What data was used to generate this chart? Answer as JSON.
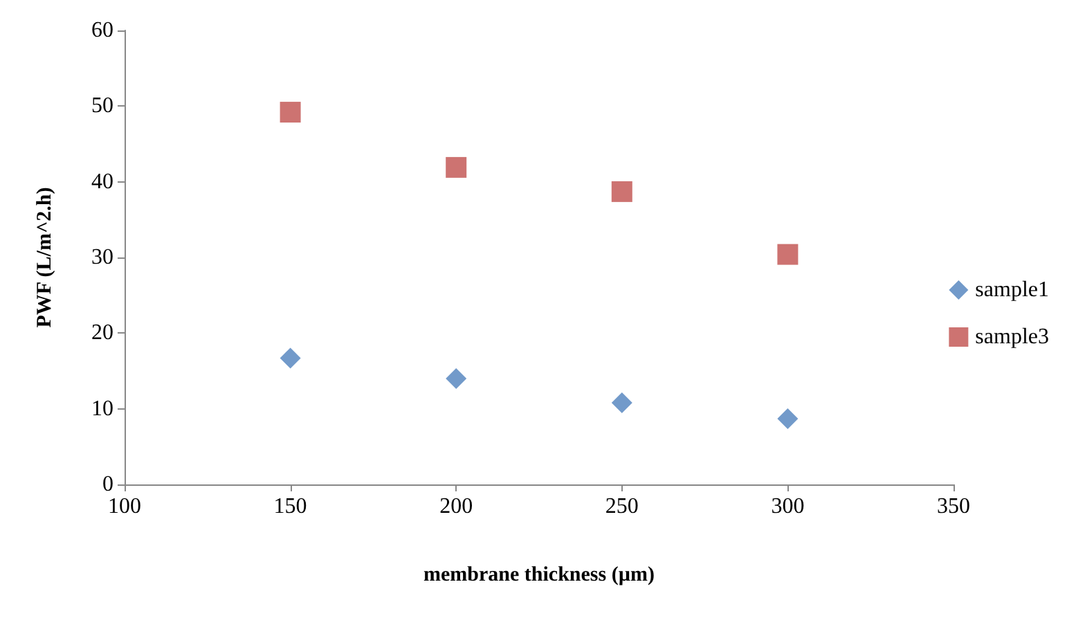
{
  "chart_data": {
    "type": "scatter",
    "xlabel": "membrane thickness (µm)",
    "ylabel": "PWF (L/m^2.h)",
    "x": [
      150,
      200,
      250,
      300
    ],
    "series": [
      {
        "name": "sample1",
        "color": "#4f81bd",
        "marker": "diamond",
        "values": [
          16.7,
          14.0,
          10.8,
          8.7
        ]
      },
      {
        "name": "sample3",
        "color": "#c0504d",
        "marker": "square",
        "values": [
          49.2,
          41.9,
          38.7,
          30.4
        ]
      }
    ],
    "xlim": [
      100,
      350
    ],
    "xticks": [
      100,
      150,
      200,
      250,
      300,
      350
    ],
    "ylim": [
      0,
      60
    ],
    "yticks": [
      0,
      10,
      20,
      30,
      40,
      50,
      60
    ],
    "grid": false,
    "legend": "right"
  }
}
